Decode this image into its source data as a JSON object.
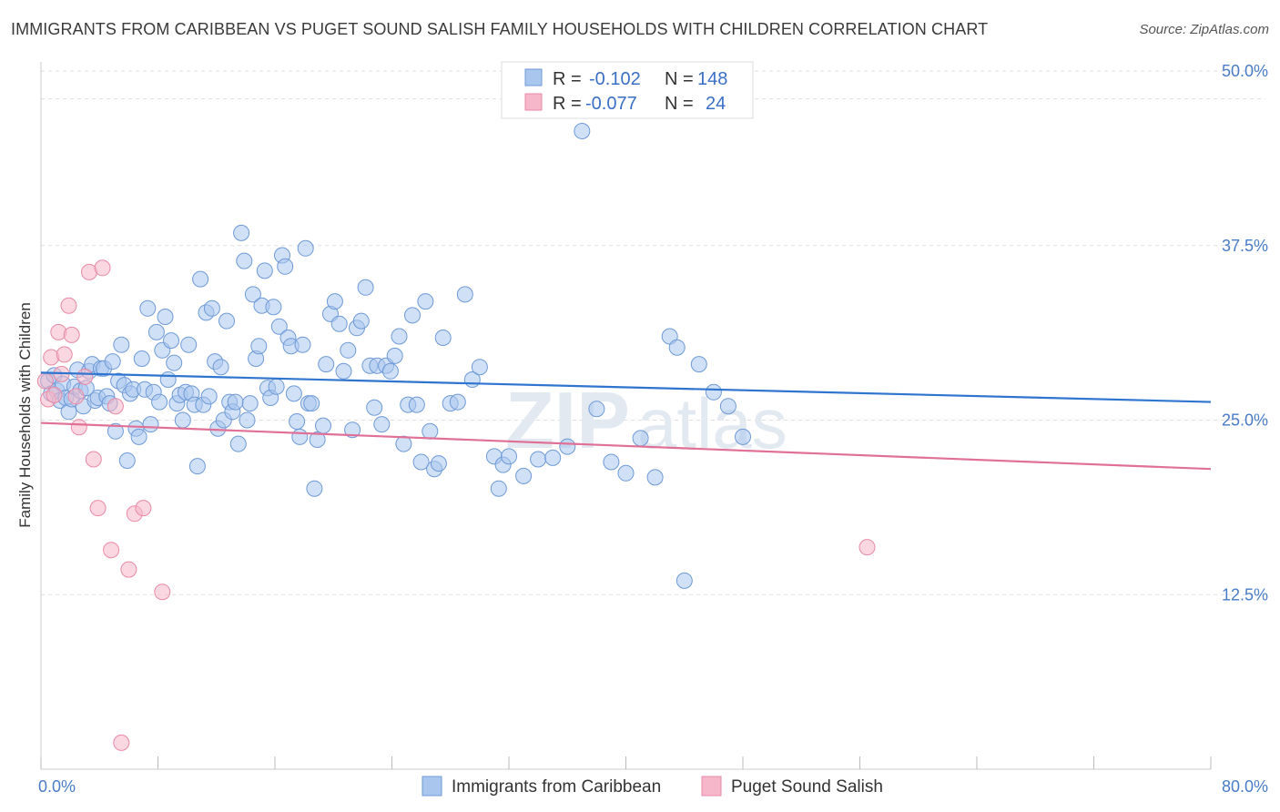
{
  "header": {
    "title": "IMMIGRANTS FROM CARIBBEAN VS PUGET SOUND SALISH FAMILY HOUSEHOLDS WITH CHILDREN CORRELATION CHART",
    "source": "Source: ZipAtlas.com"
  },
  "watermark": {
    "zip": "ZIP",
    "atlas": "atlas"
  },
  "colors": {
    "blue_fill": "#a9c6ee",
    "blue_stroke": "#6f9ad6",
    "blue_line": "#2f74cf",
    "pink_fill": "#f5b7c9",
    "pink_stroke": "#e88aa6",
    "pink_line": "#e07096",
    "grid": "#dddddd",
    "tick_text": "#4a7cc7"
  },
  "legend": {
    "rows": [
      {
        "r_label": "R =",
        "r_value": "-0.102",
        "n_label": "N =",
        "n_value": "148"
      },
      {
        "r_label": "R =",
        "r_value": "-0.077",
        "n_label": "N =",
        "n_value": "24"
      }
    ]
  },
  "chart_data": {
    "type": "scatter",
    "title": "IMMIGRANTS FROM CARIBBEAN VS PUGET SOUND SALISH FAMILY HOUSEHOLDS WITH CHILDREN CORRELATION CHART",
    "xlabel": "",
    "ylabel": "Family Households with Children",
    "xlim": [
      0,
      80
    ],
    "ylim": [
      0,
      50
    ],
    "x_tick_labels": [
      "0.0%",
      "80.0%"
    ],
    "y_ticks": [
      12.5,
      25.0,
      37.5,
      50.0
    ],
    "y_tick_labels": [
      "12.5%",
      "25.0%",
      "37.5%",
      "50.0%"
    ],
    "grid": true,
    "legend_position": "top-center",
    "series": [
      {
        "name": "Immigrants from Caribbean",
        "color": "#a9c6ee",
        "trend": {
          "x": [
            0,
            80
          ],
          "y": [
            28.4,
            26.3
          ]
        },
        "points": [
          [
            0.5,
            27.8
          ],
          [
            0.7,
            26.9
          ],
          [
            0.9,
            28.2
          ],
          [
            1.1,
            27.1
          ],
          [
            1.3,
            26.4
          ],
          [
            1.5,
            27.6
          ],
          [
            1.7,
            26.6
          ],
          [
            1.9,
            25.6
          ],
          [
            2.1,
            26.5
          ],
          [
            2.3,
            27.4
          ],
          [
            2.5,
            28.6
          ],
          [
            2.7,
            27.1
          ],
          [
            2.9,
            26.0
          ],
          [
            3.1,
            27.3
          ],
          [
            3.3,
            28.5
          ],
          [
            3.5,
            29.0
          ],
          [
            3.7,
            26.4
          ],
          [
            3.9,
            26.6
          ],
          [
            4.1,
            28.7
          ],
          [
            4.3,
            28.7
          ],
          [
            4.5,
            26.7
          ],
          [
            4.7,
            26.2
          ],
          [
            4.9,
            29.2
          ],
          [
            5.1,
            24.2
          ],
          [
            5.3,
            27.8
          ],
          [
            5.5,
            30.4
          ],
          [
            5.7,
            27.5
          ],
          [
            5.9,
            22.1
          ],
          [
            6.1,
            26.9
          ],
          [
            6.3,
            27.2
          ],
          [
            6.5,
            24.4
          ],
          [
            6.7,
            23.8
          ],
          [
            6.9,
            29.4
          ],
          [
            7.1,
            27.2
          ],
          [
            7.3,
            33.0
          ],
          [
            7.5,
            24.7
          ],
          [
            7.7,
            27.0
          ],
          [
            7.9,
            31.3
          ],
          [
            8.1,
            26.3
          ],
          [
            8.3,
            30.0
          ],
          [
            8.5,
            32.4
          ],
          [
            8.7,
            27.9
          ],
          [
            8.9,
            30.7
          ],
          [
            9.1,
            29.1
          ],
          [
            9.3,
            26.2
          ],
          [
            9.5,
            26.8
          ],
          [
            9.7,
            25.0
          ],
          [
            9.9,
            27.0
          ],
          [
            10.1,
            30.4
          ],
          [
            10.3,
            26.9
          ],
          [
            10.5,
            26.1
          ],
          [
            10.7,
            21.7
          ],
          [
            10.9,
            35.1
          ],
          [
            11.1,
            26.1
          ],
          [
            11.3,
            32.7
          ],
          [
            11.5,
            26.7
          ],
          [
            11.7,
            33.0
          ],
          [
            11.9,
            29.2
          ],
          [
            12.1,
            24.4
          ],
          [
            12.3,
            28.8
          ],
          [
            12.5,
            25.0
          ],
          [
            12.7,
            32.1
          ],
          [
            12.9,
            26.3
          ],
          [
            13.1,
            25.6
          ],
          [
            13.3,
            26.3
          ],
          [
            13.5,
            23.3
          ],
          [
            13.7,
            38.4
          ],
          [
            13.9,
            36.4
          ],
          [
            14.1,
            25.0
          ],
          [
            14.3,
            26.2
          ],
          [
            14.5,
            34.0
          ],
          [
            14.7,
            29.4
          ],
          [
            14.9,
            30.3
          ],
          [
            15.1,
            33.2
          ],
          [
            15.3,
            35.7
          ],
          [
            15.5,
            27.3
          ],
          [
            15.7,
            26.6
          ],
          [
            15.9,
            33.1
          ],
          [
            16.1,
            27.4
          ],
          [
            16.3,
            31.7
          ],
          [
            16.5,
            36.8
          ],
          [
            16.7,
            36.0
          ],
          [
            16.9,
            30.9
          ],
          [
            17.1,
            30.3
          ],
          [
            17.3,
            26.9
          ],
          [
            17.5,
            24.9
          ],
          [
            17.7,
            23.8
          ],
          [
            17.9,
            30.4
          ],
          [
            18.1,
            37.3
          ],
          [
            18.3,
            26.2
          ],
          [
            18.5,
            26.2
          ],
          [
            18.7,
            20.1
          ],
          [
            18.9,
            23.6
          ],
          [
            19.3,
            24.6
          ],
          [
            19.5,
            29.0
          ],
          [
            19.8,
            32.6
          ],
          [
            20.1,
            33.5
          ],
          [
            20.4,
            31.9
          ],
          [
            20.7,
            28.5
          ],
          [
            21.0,
            30.0
          ],
          [
            21.3,
            24.3
          ],
          [
            21.6,
            31.6
          ],
          [
            21.9,
            32.1
          ],
          [
            22.2,
            34.5
          ],
          [
            22.5,
            28.9
          ],
          [
            22.8,
            25.9
          ],
          [
            23.0,
            28.9
          ],
          [
            23.3,
            24.7
          ],
          [
            23.6,
            28.9
          ],
          [
            23.9,
            28.5
          ],
          [
            24.2,
            29.6
          ],
          [
            24.5,
            31.0
          ],
          [
            24.8,
            23.3
          ],
          [
            25.1,
            26.1
          ],
          [
            25.4,
            32.5
          ],
          [
            25.7,
            26.1
          ],
          [
            26.0,
            22.0
          ],
          [
            26.3,
            33.5
          ],
          [
            26.6,
            24.2
          ],
          [
            26.9,
            21.5
          ],
          [
            27.2,
            21.9
          ],
          [
            27.5,
            30.9
          ],
          [
            28.0,
            26.2
          ],
          [
            28.5,
            26.3
          ],
          [
            29.0,
            34.0
          ],
          [
            29.5,
            27.9
          ],
          [
            30.0,
            28.8
          ],
          [
            31.0,
            22.4
          ],
          [
            31.3,
            20.1
          ],
          [
            31.6,
            21.8
          ],
          [
            32.0,
            22.4
          ],
          [
            33.0,
            21.0
          ],
          [
            34.0,
            22.2
          ],
          [
            35.0,
            22.3
          ],
          [
            36.0,
            23.1
          ],
          [
            37.0,
            45.7
          ],
          [
            38.0,
            25.8
          ],
          [
            39.0,
            22.0
          ],
          [
            40.0,
            21.2
          ],
          [
            41.0,
            23.7
          ],
          [
            42.0,
            20.9
          ],
          [
            43.0,
            31.0
          ],
          [
            43.5,
            30.2
          ],
          [
            44.0,
            13.5
          ],
          [
            45.0,
            29.0
          ],
          [
            46.0,
            27.0
          ],
          [
            47.0,
            26.0
          ],
          [
            48.0,
            23.8
          ]
        ]
      },
      {
        "name": "Puget Sound Salish",
        "color": "#f5b7c9",
        "trend": {
          "x": [
            0,
            80
          ],
          "y": [
            24.8,
            21.5
          ]
        },
        "points": [
          [
            0.3,
            27.8
          ],
          [
            0.5,
            26.5
          ],
          [
            0.7,
            29.5
          ],
          [
            0.9,
            26.8
          ],
          [
            1.2,
            31.3
          ],
          [
            1.4,
            28.3
          ],
          [
            1.6,
            29.7
          ],
          [
            1.9,
            33.2
          ],
          [
            2.1,
            31.1
          ],
          [
            2.4,
            26.7
          ],
          [
            2.6,
            24.5
          ],
          [
            3.0,
            28.1
          ],
          [
            3.3,
            35.6
          ],
          [
            3.6,
            22.2
          ],
          [
            3.9,
            18.7
          ],
          [
            4.2,
            35.9
          ],
          [
            4.8,
            15.7
          ],
          [
            5.1,
            26.0
          ],
          [
            5.5,
            1.9
          ],
          [
            6.0,
            14.3
          ],
          [
            6.4,
            18.3
          ],
          [
            7.0,
            18.7
          ],
          [
            8.3,
            12.7
          ],
          [
            56.5,
            15.9
          ]
        ]
      }
    ]
  },
  "bottom_legend": {
    "items": [
      "Immigrants from Caribbean",
      "Puget Sound Salish"
    ]
  }
}
